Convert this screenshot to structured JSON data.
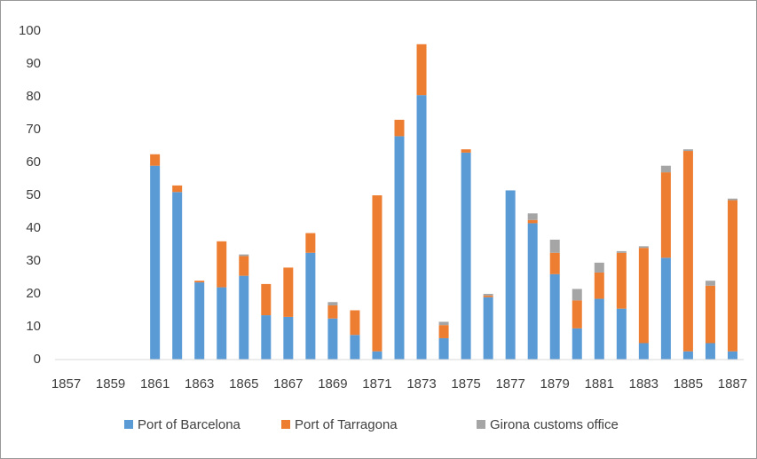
{
  "chart_data": {
    "type": "stacked-bar",
    "categories": [
      "1857",
      null,
      "1859",
      null,
      "1861",
      null,
      "1863",
      null,
      "1865",
      null,
      "1867",
      null,
      "1869",
      null,
      "1871",
      null,
      "1873",
      null,
      "1875",
      null,
      "1877",
      null,
      "1879",
      null,
      "1881",
      null,
      "1883",
      null,
      "1885",
      null,
      "1887"
    ],
    "series": [
      {
        "name": "Port of Barcelona",
        "color": "#5b9bd5",
        "values": [
          0,
          0,
          0,
          0,
          59,
          51,
          23.5,
          22,
          25.5,
          13.5,
          13,
          32.5,
          12.5,
          7.5,
          2.5,
          68,
          80.5,
          6.5,
          63,
          19,
          51.5,
          41.5,
          26,
          9.5,
          18.5,
          15.5,
          5,
          31,
          2.5,
          5,
          2.5
        ]
      },
      {
        "name": "Port of Tarragona",
        "color": "#ed7d31",
        "values": [
          0,
          0,
          0,
          0,
          3.5,
          2,
          0.5,
          14,
          6,
          9.5,
          15,
          6,
          4,
          7.5,
          47.5,
          5,
          15.5,
          4,
          1,
          0.5,
          0,
          1,
          6.5,
          8.5,
          8,
          17,
          29,
          26,
          61,
          17.5,
          46
        ]
      },
      {
        "name": "Girona customs office",
        "color": "#a5a5a5",
        "values": [
          0,
          0,
          0,
          0,
          0,
          0,
          0,
          0,
          0.5,
          0,
          0,
          0,
          1,
          0,
          0,
          0,
          0,
          1,
          0,
          0.5,
          0,
          2,
          4,
          3.5,
          3,
          0.5,
          0.5,
          2,
          0.5,
          1.5,
          0.5
        ]
      }
    ],
    "ylim": [
      0,
      100
    ],
    "yticks": [
      0,
      10,
      20,
      30,
      40,
      50,
      60,
      70,
      80,
      90,
      100
    ],
    "grid": false,
    "legend": "bottom"
  }
}
